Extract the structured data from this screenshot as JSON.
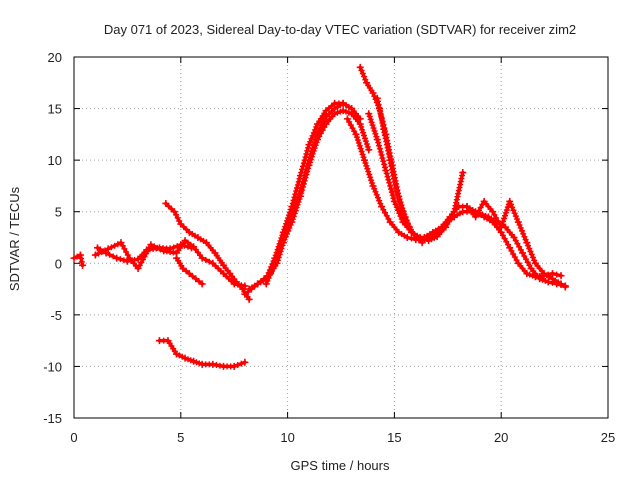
{
  "chart_data": {
    "type": "scatter",
    "title": "Day 071 of 2023, Sidereal Day-to-day VTEC variation (SDTVAR) for receiver zim2",
    "xlabel": "GPS time / hours",
    "ylabel": "SDTVAR / TECUs",
    "xlim": [
      0,
      25
    ],
    "ylim": [
      -15,
      20
    ],
    "xticks": [
      0,
      5,
      10,
      15,
      20,
      25
    ],
    "yticks": [
      -15,
      -10,
      -5,
      0,
      5,
      10,
      15,
      20
    ],
    "grid": true,
    "marker": "+",
    "color": "#ff0000",
    "series": [
      {
        "name": "track-1",
        "x": [
          0.0,
          0.3,
          0.4
        ],
        "y": [
          0.5,
          0.8,
          -0.2
        ]
      },
      {
        "name": "track-2",
        "x": [
          1.1,
          1.5,
          2.0,
          2.5,
          3.0,
          3.4,
          4.0,
          4.5,
          5.0,
          5.5
        ],
        "y": [
          1.5,
          1.0,
          0.5,
          0.2,
          0.4,
          1.3,
          1.5,
          1.4,
          1.8,
          1.5
        ]
      },
      {
        "name": "track-3",
        "x": [
          1.0,
          1.6,
          2.2,
          2.6,
          3.0,
          3.6,
          4.2,
          4.8,
          5.2,
          5.6,
          6.0,
          6.5,
          7.0,
          7.5,
          8.0
        ],
        "y": [
          0.8,
          1.4,
          2.0,
          0.5,
          -0.5,
          1.8,
          1.2,
          1.0,
          2.2,
          1.6,
          0.5,
          0.0,
          -1.0,
          -2.0,
          -2.2
        ]
      },
      {
        "name": "track-4",
        "x": [
          4.3,
          4.7,
          5.0,
          5.4,
          5.8,
          6.2,
          6.6,
          7.0,
          7.3,
          7.6,
          7.9,
          8.2
        ],
        "y": [
          5.8,
          5.0,
          3.8,
          3.0,
          2.5,
          2.0,
          1.0,
          -0.2,
          -1.0,
          -1.8,
          -2.5,
          -3.5
        ]
      },
      {
        "name": "track-5",
        "x": [
          4.8,
          5.1,
          5.4,
          5.7,
          6.0
        ],
        "y": [
          0.5,
          -0.5,
          -1.0,
          -1.5,
          -2.0
        ]
      },
      {
        "name": "track-6",
        "x": [
          4.0,
          4.4,
          4.8,
          5.2,
          5.6,
          6.0,
          6.5,
          7.0,
          7.5,
          8.0
        ],
        "y": [
          -7.5,
          -7.5,
          -8.8,
          -9.2,
          -9.5,
          -9.8,
          -9.8,
          -10.0,
          -10.0,
          -9.6
        ]
      },
      {
        "name": "track-7",
        "x": [
          8.0,
          8.3,
          8.6,
          8.9,
          9.2,
          9.5,
          9.8,
          10.2,
          10.6,
          11.0,
          11.4,
          11.8,
          12.2,
          12.6,
          13.0,
          13.4,
          13.8
        ],
        "y": [
          -3.0,
          -2.5,
          -2.0,
          -1.5,
          -1.0,
          0.0,
          2.0,
          4.0,
          6.5,
          9.5,
          12.0,
          13.5,
          14.5,
          14.8,
          14.5,
          13.5,
          11.0
        ]
      },
      {
        "name": "track-8",
        "x": [
          8.2,
          8.6,
          9.0,
          9.4,
          9.8,
          10.2,
          10.6,
          11.0,
          11.4,
          11.8,
          12.2,
          12.6,
          13.0
        ],
        "y": [
          -2.5,
          -2.0,
          -1.5,
          0.5,
          3.0,
          5.5,
          8.5,
          11.5,
          13.5,
          14.8,
          15.5,
          15.5,
          15.0
        ]
      },
      {
        "name": "track-9",
        "x": [
          9.0,
          9.4,
          9.8,
          10.2,
          10.6,
          11.0,
          11.4,
          11.8,
          12.2,
          12.6,
          13.0,
          13.4
        ],
        "y": [
          -2.0,
          0.0,
          2.5,
          4.5,
          7.0,
          10.0,
          12.5,
          14.2,
          15.0,
          15.5,
          15.0,
          14.0
        ]
      },
      {
        "name": "track-10",
        "x": [
          13.4,
          13.7,
          14.0,
          14.3,
          14.6,
          14.9,
          15.2,
          15.5,
          15.8,
          16.2,
          16.6,
          17.0,
          17.4,
          17.8,
          18.2
        ],
        "y": [
          19.0,
          17.5,
          16.5,
          15.0,
          12.5,
          9.5,
          6.5,
          4.5,
          3.0,
          2.4,
          2.2,
          2.6,
          3.5,
          5.0,
          8.8
        ]
      },
      {
        "name": "track-11",
        "x": [
          13.8,
          14.2,
          14.6,
          15.0,
          15.4,
          15.8,
          16.2,
          16.6,
          17.0,
          17.4,
          17.8,
          18.2,
          18.6,
          19.0,
          19.4,
          19.8,
          20.2,
          20.6,
          21.0,
          21.4,
          21.8,
          22.2,
          22.6,
          23.0
        ],
        "y": [
          14.5,
          12.0,
          9.0,
          6.0,
          4.0,
          3.0,
          2.5,
          2.5,
          3.0,
          3.8,
          4.5,
          5.0,
          5.0,
          4.8,
          4.5,
          4.0,
          3.5,
          2.5,
          1.0,
          -0.5,
          -1.5,
          -1.8,
          -2.0,
          -2.2
        ]
      },
      {
        "name": "track-12",
        "x": [
          12.8,
          13.2,
          13.6,
          14.0,
          14.4,
          14.8,
          15.2,
          15.6,
          16.0,
          16.4,
          16.8,
          17.2,
          17.6,
          18.0,
          18.4,
          18.8,
          19.2,
          19.6,
          20.0,
          20.4,
          20.8,
          21.2,
          21.6,
          22.0,
          22.4,
          22.8
        ],
        "y": [
          14.0,
          12.5,
          10.0,
          7.5,
          5.5,
          4.0,
          3.0,
          2.5,
          2.3,
          2.5,
          3.0,
          3.5,
          4.5,
          5.5,
          5.5,
          5.0,
          4.5,
          4.0,
          3.0,
          1.5,
          0.0,
          -1.0,
          -1.3,
          -1.2,
          -1.0,
          -1.2
        ]
      },
      {
        "name": "track-13",
        "x": [
          14.2,
          14.5,
          14.8,
          15.1,
          15.4,
          15.7,
          16.0,
          16.3
        ],
        "y": [
          16.0,
          13.0,
          10.0,
          7.0,
          5.0,
          3.5,
          2.5,
          2.0
        ]
      },
      {
        "name": "track-14",
        "x": [
          18.4,
          18.8,
          19.2,
          19.6,
          20.0,
          20.4,
          20.8,
          21.2,
          21.6,
          22.0,
          22.4,
          22.8,
          23.0
        ],
        "y": [
          5.5,
          4.5,
          6.0,
          5.0,
          3.5,
          6.0,
          4.0,
          2.0,
          0.0,
          -1.0,
          -1.5,
          -2.0,
          -2.3
        ]
      }
    ]
  }
}
